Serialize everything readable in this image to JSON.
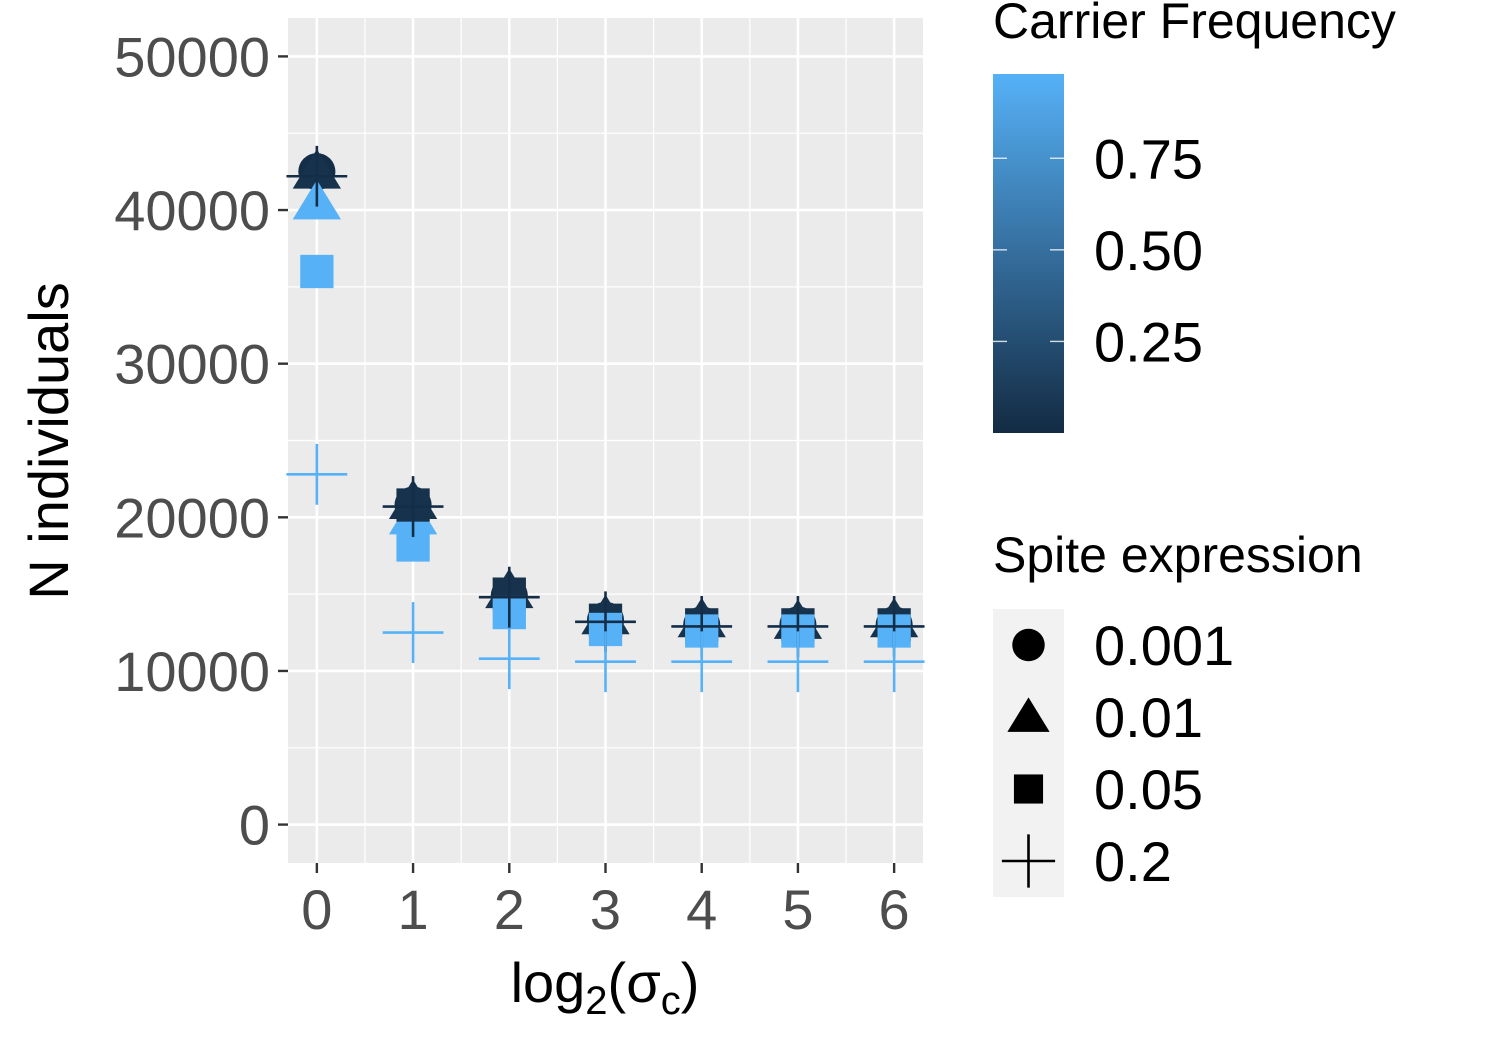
{
  "chart_data": {
    "type": "scatter",
    "xlabel": "log2(σc)",
    "xlabel_main": "log",
    "xlabel_sub1": "2",
    "xlabel_mid": "(σ",
    "xlabel_sub2": "c",
    "xlabel_end": ")",
    "ylabel": "N individuals",
    "x_ticks": [
      "0",
      "1",
      "2",
      "3",
      "4",
      "5",
      "6"
    ],
    "y_ticks": [
      "0",
      "10000",
      "20000",
      "30000",
      "40000",
      "50000"
    ],
    "xlim": [
      -0.3,
      6.3
    ],
    "ylim": [
      -2500,
      52500
    ],
    "grid": true,
    "legend_position": "right",
    "color_legend": {
      "title": "Carrier Frequency",
      "labels": [
        "0.25",
        "0.50",
        "0.75"
      ],
      "values": [
        0.25,
        0.5,
        0.75
      ],
      "range": [
        0.0,
        0.98
      ],
      "low_color": "#132B43",
      "high_color": "#56B1F7"
    },
    "shape_legend": {
      "title": "Spite expression",
      "entries": [
        {
          "label": "0.001",
          "shape": "circle"
        },
        {
          "label": "0.01",
          "shape": "triangle"
        },
        {
          "label": "0.05",
          "shape": "square"
        },
        {
          "label": "0.2",
          "shape": "plus"
        }
      ]
    },
    "series": [
      {
        "name": "0.001",
        "shape": "circle",
        "points": [
          {
            "x": 0,
            "y": 42500,
            "freq": 0.02
          },
          {
            "x": 1,
            "y": 20800,
            "freq": 0.02
          },
          {
            "x": 2,
            "y": 14900,
            "freq": 0.02
          },
          {
            "x": 3,
            "y": 13300,
            "freq": 0.02
          },
          {
            "x": 4,
            "y": 13000,
            "freq": 0.02
          },
          {
            "x": 5,
            "y": 13000,
            "freq": 0.02
          },
          {
            "x": 6,
            "y": 13000,
            "freq": 0.02
          }
        ]
      },
      {
        "name": "0.01",
        "shape": "triangle",
        "points": [
          {
            "x": 0,
            "y": 42500,
            "freq": 0.05
          },
          {
            "x": 0,
            "y": 40500,
            "freq": 0.98
          },
          {
            "x": 1,
            "y": 21000,
            "freq": 0.05
          },
          {
            "x": 1,
            "y": 20000,
            "freq": 0.98
          },
          {
            "x": 2,
            "y": 15200,
            "freq": 0.05
          },
          {
            "x": 3,
            "y": 13500,
            "freq": 0.05
          },
          {
            "x": 4,
            "y": 13300,
            "freq": 0.05
          },
          {
            "x": 5,
            "y": 13200,
            "freq": 0.05
          },
          {
            "x": 6,
            "y": 13300,
            "freq": 0.05
          }
        ]
      },
      {
        "name": "0.05",
        "shape": "square",
        "points": [
          {
            "x": 0,
            "y": 36000,
            "freq": 0.98
          },
          {
            "x": 1,
            "y": 20800,
            "freq": 0.05
          },
          {
            "x": 1,
            "y": 18200,
            "freq": 0.98
          },
          {
            "x": 2,
            "y": 15000,
            "freq": 0.05
          },
          {
            "x": 2,
            "y": 13800,
            "freq": 0.98
          },
          {
            "x": 3,
            "y": 13300,
            "freq": 0.05
          },
          {
            "x": 3,
            "y": 12700,
            "freq": 0.98
          },
          {
            "x": 4,
            "y": 13000,
            "freq": 0.05
          },
          {
            "x": 4,
            "y": 12600,
            "freq": 0.98
          },
          {
            "x": 5,
            "y": 13000,
            "freq": 0.05
          },
          {
            "x": 5,
            "y": 12600,
            "freq": 0.98
          },
          {
            "x": 6,
            "y": 13000,
            "freq": 0.05
          },
          {
            "x": 6,
            "y": 12600,
            "freq": 0.98
          }
        ]
      },
      {
        "name": "0.2",
        "shape": "plus",
        "points": [
          {
            "x": 0,
            "y": 42200,
            "freq": 0.02
          },
          {
            "x": 0,
            "y": 22800,
            "freq": 0.98
          },
          {
            "x": 1,
            "y": 20700,
            "freq": 0.02
          },
          {
            "x": 1,
            "y": 12500,
            "freq": 0.98
          },
          {
            "x": 2,
            "y": 14800,
            "freq": 0.02
          },
          {
            "x": 2,
            "y": 10800,
            "freq": 0.98
          },
          {
            "x": 3,
            "y": 13200,
            "freq": 0.02
          },
          {
            "x": 3,
            "y": 10600,
            "freq": 0.98
          },
          {
            "x": 4,
            "y": 12900,
            "freq": 0.02
          },
          {
            "x": 4,
            "y": 10600,
            "freq": 0.98
          },
          {
            "x": 5,
            "y": 12900,
            "freq": 0.02
          },
          {
            "x": 5,
            "y": 10600,
            "freq": 0.98
          },
          {
            "x": 6,
            "y": 12900,
            "freq": 0.02
          },
          {
            "x": 6,
            "y": 10600,
            "freq": 0.98
          }
        ]
      }
    ]
  }
}
